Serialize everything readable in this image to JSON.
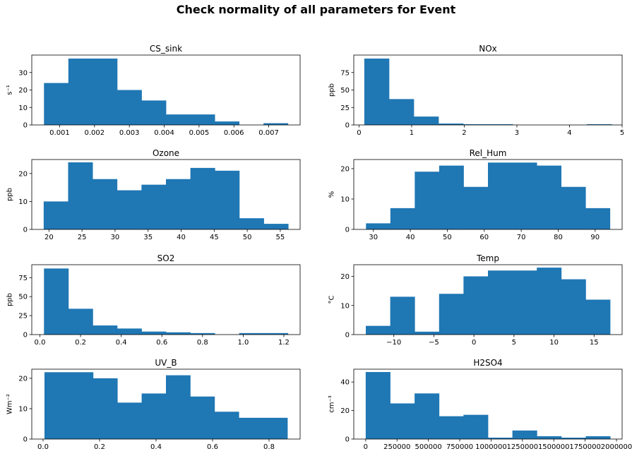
{
  "figure": {
    "title": "Check normality of all parameters for Event"
  },
  "colors": {
    "bar": "#1f77b4",
    "axis": "#000000"
  },
  "chart_data": [
    {
      "type": "bar",
      "title": "CS_sink",
      "ylabel": "s⁻¹",
      "edges": [
        0.00055,
        0.00125,
        0.00195,
        0.00265,
        0.00335,
        0.00405,
        0.00475,
        0.00545,
        0.00615,
        0.00685,
        0.00755
      ],
      "values": [
        24,
        38,
        38,
        20,
        14,
        6,
        6,
        2,
        0,
        1
      ],
      "xlim": [
        0.0002,
        0.0079
      ],
      "ylim": [
        0,
        40
      ],
      "xticks": [
        0.001,
        0.002,
        0.003,
        0.004,
        0.005,
        0.006,
        0.007
      ],
      "xticklabels": [
        "0.001",
        "0.002",
        "0.003",
        "0.004",
        "0.005",
        "0.006",
        "0.007"
      ],
      "yticks": [
        0,
        10,
        20,
        30
      ],
      "yticklabels": [
        "0",
        "10",
        "20",
        "30"
      ]
    },
    {
      "type": "bar",
      "title": "NOx",
      "ylabel": "ppb",
      "edges": [
        0.1,
        0.57,
        1.04,
        1.51,
        1.98,
        2.45,
        2.92,
        3.39,
        3.86,
        4.33,
        4.8
      ],
      "values": [
        95,
        37,
        12,
        2,
        1,
        1,
        0,
        0,
        0,
        1
      ],
      "xlim": [
        -0.1,
        5.0
      ],
      "ylim": [
        0,
        100
      ],
      "xticks": [
        0,
        1,
        2,
        3,
        4,
        5
      ],
      "xticklabels": [
        "0",
        "1",
        "2",
        "3",
        "4",
        "5"
      ],
      "yticks": [
        0,
        25,
        50,
        75
      ],
      "yticklabels": [
        "0",
        "25",
        "50",
        "75"
      ]
    },
    {
      "type": "bar",
      "title": "Ozone",
      "ylabel": "ppb",
      "edges": [
        19.2,
        22.9,
        26.6,
        30.3,
        34.0,
        37.7,
        41.4,
        45.1,
        48.8,
        52.5,
        56.2
      ],
      "values": [
        10,
        24,
        18,
        14,
        16,
        18,
        22,
        21,
        4,
        2
      ],
      "xlim": [
        17.4,
        58.0
      ],
      "ylim": [
        0,
        25
      ],
      "xticks": [
        20,
        25,
        30,
        35,
        40,
        45,
        50,
        55
      ],
      "xticklabels": [
        "20",
        "25",
        "30",
        "35",
        "40",
        "45",
        "50",
        "55"
      ],
      "yticks": [
        0,
        10,
        20
      ],
      "yticklabels": [
        "0",
        "10",
        "20"
      ]
    },
    {
      "type": "bar",
      "title": "Rel_Hum",
      "ylabel": "%",
      "edges": [
        28,
        34.6,
        41.2,
        47.8,
        54.4,
        61,
        67.6,
        74.2,
        80.8,
        87.4,
        94
      ],
      "values": [
        2,
        7,
        19,
        21,
        14,
        22,
        22,
        21,
        14,
        7
      ],
      "xlim": [
        24.7,
        97.3
      ],
      "ylim": [
        0,
        23
      ],
      "xticks": [
        30,
        40,
        50,
        60,
        70,
        80,
        90
      ],
      "xticklabels": [
        "30",
        "40",
        "50",
        "60",
        "70",
        "80",
        "90"
      ],
      "yticks": [
        0,
        10,
        20
      ],
      "yticklabels": [
        "0",
        "10",
        "20"
      ]
    },
    {
      "type": "bar",
      "title": "SO2",
      "ylabel": "ppb",
      "edges": [
        0.02,
        0.14,
        0.26,
        0.38,
        0.5,
        0.62,
        0.74,
        0.86,
        0.98,
        1.1,
        1.22
      ],
      "values": [
        87,
        34,
        12,
        8,
        4,
        3,
        2,
        0,
        2,
        2
      ],
      "xlim": [
        -0.04,
        1.28
      ],
      "ylim": [
        0,
        92
      ],
      "xticks": [
        0.0,
        0.2,
        0.4,
        0.6,
        0.8,
        1.0,
        1.2
      ],
      "xticklabels": [
        "0.0",
        "0.2",
        "0.4",
        "0.6",
        "0.8",
        "1.0",
        "1.2"
      ],
      "yticks": [
        0,
        25,
        50,
        75
      ],
      "yticklabels": [
        "0",
        "25",
        "50",
        "75"
      ]
    },
    {
      "type": "bar",
      "title": "Temp",
      "ylabel": "°C",
      "edges": [
        -13.5,
        -10.45,
        -7.4,
        -4.35,
        -1.3,
        1.75,
        4.8,
        7.85,
        10.9,
        13.95,
        17.0
      ],
      "values": [
        3,
        13,
        1,
        14,
        20,
        22,
        22,
        23,
        19,
        12
      ],
      "xlim": [
        -15.0,
        18.5
      ],
      "ylim": [
        0,
        24
      ],
      "xticks": [
        -10,
        -5,
        0,
        5,
        10,
        15
      ],
      "xticklabels": [
        "−10",
        "−5",
        "0",
        "5",
        "10",
        "15"
      ],
      "yticks": [
        0,
        10,
        20
      ],
      "yticklabels": [
        "0",
        "10",
        "20"
      ]
    },
    {
      "type": "bar",
      "title": "UV_B",
      "ylabel": "Wm⁻²",
      "edges": [
        0.005,
        0.091,
        0.177,
        0.263,
        0.349,
        0.435,
        0.521,
        0.607,
        0.693,
        0.779,
        0.865
      ],
      "values": [
        22,
        22,
        20,
        12,
        15,
        21,
        14,
        9,
        7,
        7
      ],
      "xlim": [
        -0.04,
        0.91
      ],
      "ylim": [
        0,
        23
      ],
      "xticks": [
        0.0,
        0.2,
        0.4,
        0.6,
        0.8
      ],
      "xticklabels": [
        "0.0",
        "0.2",
        "0.4",
        "0.6",
        "0.8"
      ],
      "yticks": [
        0,
        10,
        20
      ],
      "yticklabels": [
        "0",
        "10",
        "20"
      ]
    },
    {
      "type": "bar",
      "title": "H2SO4",
      "ylabel": "cm⁻³",
      "edges": [
        0,
        195000,
        390000,
        585000,
        780000,
        975000,
        1170000,
        1365000,
        1560000,
        1755000,
        1950000
      ],
      "values": [
        47,
        25,
        32,
        16,
        17,
        1,
        6,
        2,
        1,
        2
      ],
      "xlim": [
        -95000,
        2045000
      ],
      "ylim": [
        0,
        49
      ],
      "xticks": [
        0,
        250000,
        500000,
        750000,
        1000000,
        1250000,
        1500000,
        1750000,
        2000000
      ],
      "xticklabels": [
        "0",
        "250000",
        "500000",
        "750000",
        "1000000",
        "1250000",
        "1500000",
        "1750000",
        "2000000"
      ],
      "yticks": [
        0,
        20,
        40
      ],
      "yticklabels": [
        "0",
        "20",
        "40"
      ]
    }
  ]
}
